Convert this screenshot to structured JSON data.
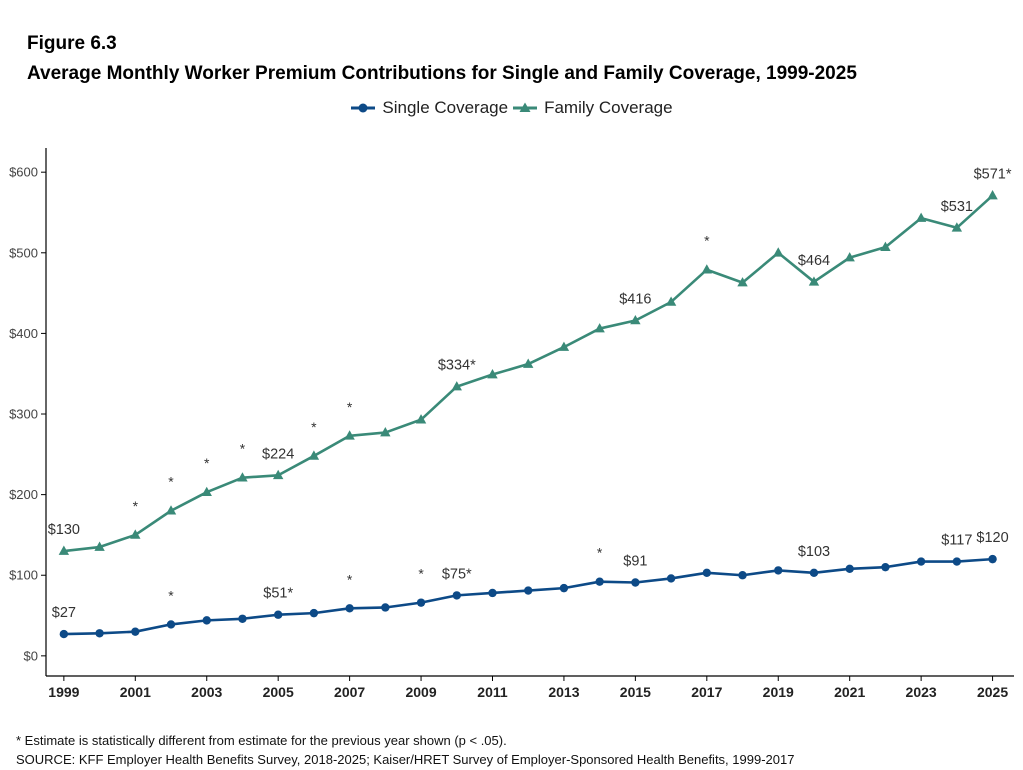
{
  "header": {
    "figure_label": "Figure 6.3",
    "title": "Average Monthly Worker Premium Contributions for Single and Family Coverage, 1999-2025"
  },
  "legend": {
    "items": [
      {
        "label": "Single Coverage",
        "color": "#0d4a87",
        "marker": "circle"
      },
      {
        "label": "Family Coverage",
        "color": "#3a8a78",
        "marker": "triangle"
      }
    ]
  },
  "chart_data": {
    "type": "line",
    "title": "Average Monthly Worker Premium Contributions for Single and Family Coverage, 1999-2025",
    "xlabel": "",
    "ylabel": "",
    "x": [
      1999,
      2000,
      2001,
      2002,
      2003,
      2004,
      2005,
      2006,
      2007,
      2008,
      2009,
      2010,
      2011,
      2012,
      2013,
      2014,
      2015,
      2016,
      2017,
      2018,
      2019,
      2020,
      2021,
      2022,
      2023,
      2024,
      2025
    ],
    "x_ticks": [
      "1999",
      "2001",
      "2003",
      "2005",
      "2007",
      "2009",
      "2011",
      "2013",
      "2015",
      "2017",
      "2019",
      "2021",
      "2023",
      "2025"
    ],
    "x_tick_values": [
      1999,
      2001,
      2003,
      2005,
      2007,
      2009,
      2011,
      2013,
      2015,
      2017,
      2019,
      2021,
      2023,
      2025
    ],
    "xlim": [
      1998.5,
      2025.6
    ],
    "y_ticks": [
      "$0",
      "$100",
      "$200",
      "$300",
      "$400",
      "$500",
      "$600"
    ],
    "y_tick_values": [
      0,
      100,
      200,
      300,
      400,
      500,
      600
    ],
    "ylim": [
      -25,
      630
    ],
    "grid": false,
    "legend_position": "top-center",
    "series": [
      {
        "name": "Single Coverage",
        "color": "#0d4a87",
        "marker": "circle",
        "values": [
          27,
          28,
          30,
          39,
          44,
          46,
          51,
          53,
          59,
          60,
          66,
          75,
          78,
          81,
          84,
          92,
          91,
          96,
          103,
          100,
          106,
          103,
          108,
          110,
          117,
          117,
          120
        ],
        "labels": [
          {
            "year": 1999,
            "text": "$27"
          },
          {
            "year": 2005,
            "text": "$51*"
          },
          {
            "year": 2010,
            "text": "$75*"
          },
          {
            "year": 2015,
            "text": "$91"
          },
          {
            "year": 2020,
            "text": "$103"
          },
          {
            "year": 2024,
            "text": "$117"
          },
          {
            "year": 2025,
            "text": "$120"
          }
        ],
        "stars": [
          2002,
          2007,
          2009,
          2014
        ]
      },
      {
        "name": "Family Coverage",
        "color": "#3a8a78",
        "marker": "triangle",
        "values": [
          130,
          135,
          150,
          180,
          203,
          221,
          224,
          248,
          273,
          277,
          293,
          334,
          349,
          362,
          383,
          406,
          416,
          439,
          479,
          463,
          500,
          464,
          494,
          507,
          543,
          531,
          571
        ],
        "labels": [
          {
            "year": 1999,
            "text": "$130"
          },
          {
            "year": 2005,
            "text": "$224"
          },
          {
            "year": 2010,
            "text": "$334*"
          },
          {
            "year": 2015,
            "text": "$416"
          },
          {
            "year": 2020,
            "text": "$464"
          },
          {
            "year": 2024,
            "text": "$531"
          },
          {
            "year": 2025,
            "text": "$571*"
          }
        ],
        "stars": [
          2001,
          2002,
          2003,
          2004,
          2006,
          2007,
          2017
        ]
      }
    ]
  },
  "footer": {
    "footnote": "* Estimate is statistically different from estimate for the previous year shown (p < .05).",
    "source": "SOURCE: KFF Employer Health Benefits Survey, 2018-2025; Kaiser/HRET Survey of Employer-Sponsored Health Benefits, 1999-2017"
  }
}
